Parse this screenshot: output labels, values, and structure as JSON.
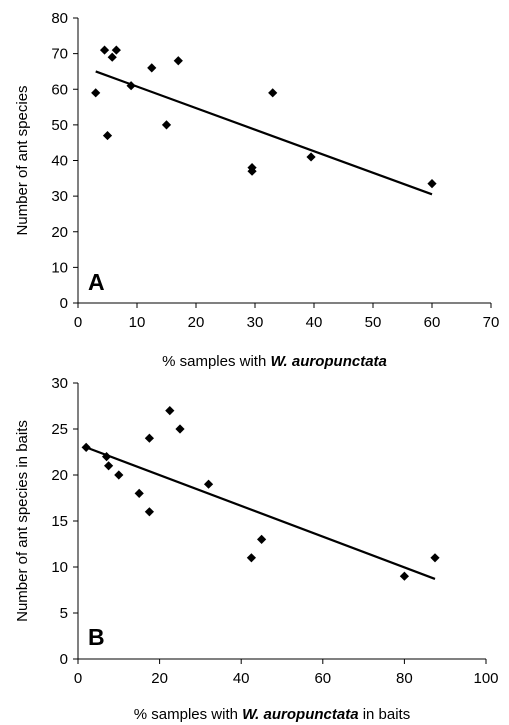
{
  "chart_data": [
    {
      "type": "scatter",
      "panel_label": "A",
      "xlabel_parts": [
        "% samples with ",
        "W. auropunctata",
        ""
      ],
      "ylabel": "Number of ant species",
      "xlim": [
        0,
        70
      ],
      "ylim": [
        0,
        80
      ],
      "xticks": [
        0,
        10,
        20,
        30,
        40,
        50,
        60,
        70
      ],
      "yticks": [
        0,
        10,
        20,
        30,
        40,
        50,
        60,
        70,
        80
      ],
      "points": [
        [
          3,
          59
        ],
        [
          4.5,
          71
        ],
        [
          5,
          47
        ],
        [
          5.8,
          69
        ],
        [
          6.5,
          71
        ],
        [
          9,
          61
        ],
        [
          12.5,
          66
        ],
        [
          15,
          50
        ],
        [
          17,
          68
        ],
        [
          29.5,
          37
        ],
        [
          29.5,
          38
        ],
        [
          33,
          59
        ],
        [
          39.5,
          41
        ],
        [
          60,
          33.5
        ]
      ],
      "trendline": [
        [
          3,
          65
        ],
        [
          60,
          30.5
        ]
      ],
      "grid": false
    },
    {
      "type": "scatter",
      "panel_label": "B",
      "xlabel_parts": [
        "% samples with ",
        "W. auropunctata",
        " in baits"
      ],
      "ylabel": "Number of ant species in baits",
      "xlim": [
        0,
        100
      ],
      "ylim": [
        0,
        30
      ],
      "xticks": [
        0,
        20,
        40,
        60,
        80,
        100
      ],
      "yticks": [
        0,
        5,
        10,
        15,
        20,
        25,
        30
      ],
      "points": [
        [
          2,
          23
        ],
        [
          7,
          22
        ],
        [
          7.5,
          21
        ],
        [
          10,
          20
        ],
        [
          15,
          18
        ],
        [
          17.5,
          24
        ],
        [
          17.5,
          16
        ],
        [
          22.5,
          27
        ],
        [
          25,
          25
        ],
        [
          32,
          19
        ],
        [
          42.5,
          11
        ],
        [
          45,
          13
        ],
        [
          80,
          9
        ],
        [
          87.5,
          11
        ]
      ],
      "trendline": [
        [
          2,
          23
        ],
        [
          87.5,
          8.7
        ]
      ],
      "grid": false
    }
  ]
}
